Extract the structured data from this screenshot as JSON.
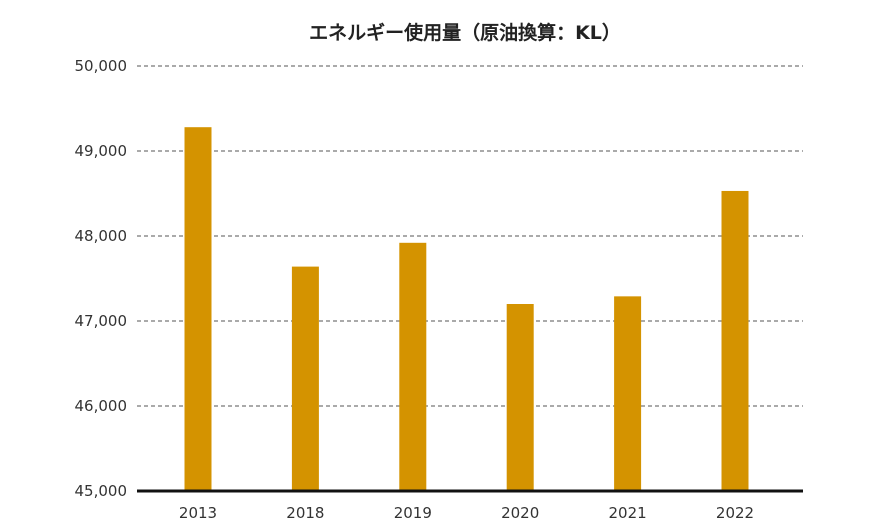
{
  "chart_data": {
    "type": "bar",
    "title": "エネルギー使用量（原油換算：KL）",
    "categories": [
      "2013",
      "2018",
      "2019",
      "2020",
      "2021",
      "2022"
    ],
    "values": [
      49280,
      47640,
      47920,
      47200,
      47290,
      48530
    ],
    "ylim": [
      45000,
      50000
    ],
    "yticks": [
      45000,
      46000,
      47000,
      48000,
      49000,
      50000
    ],
    "ytick_labels": [
      "45,000",
      "46,000",
      "47,000",
      "48,000",
      "49,000",
      "50,000"
    ],
    "xlabel": "",
    "ylabel": "",
    "grid": true,
    "bar_color": "#D49300",
    "axis_color": "#111111",
    "grid_color": "#555555"
  }
}
